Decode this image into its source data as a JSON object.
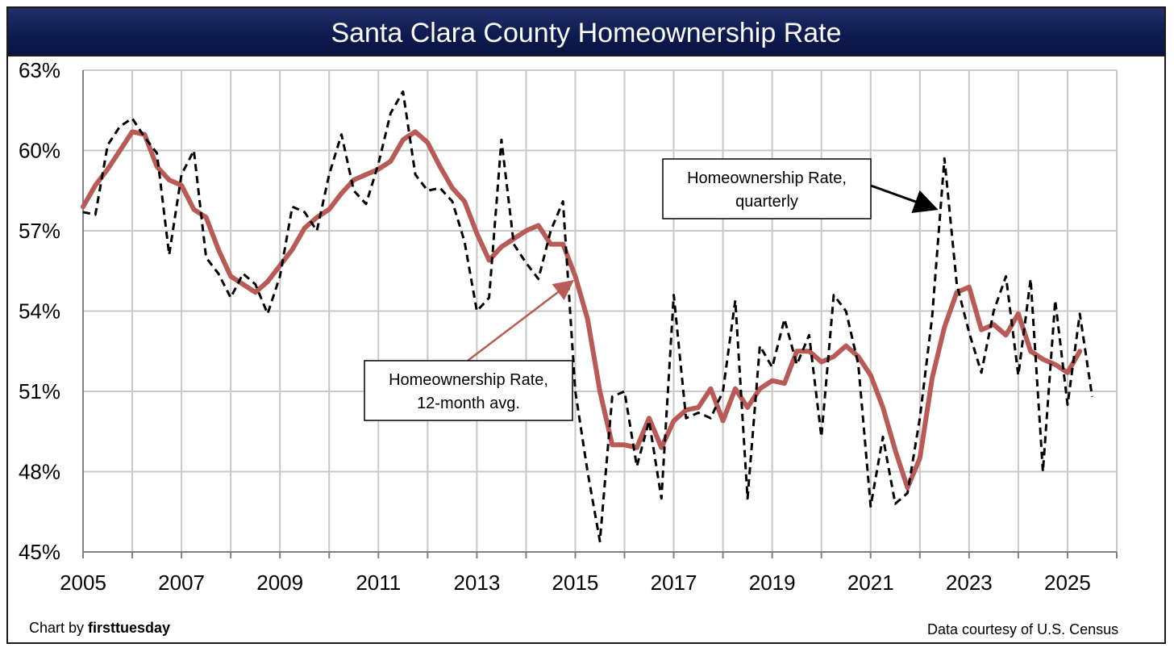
{
  "header": {
    "title": "Santa Clara County Homeownership Rate"
  },
  "credits": {
    "left_prefix": "Chart by ",
    "left_brand": "firsttuesday",
    "right": "Data courtesy of U.S. Census"
  },
  "colors": {
    "title_bg": "#0d1a4e",
    "quarterly": "#000000",
    "avg": "#b85a55",
    "grid": "#c8c8c8"
  },
  "chart_data": {
    "type": "line",
    "title": "Santa Clara County Homeownership Rate",
    "xlabel": "",
    "ylabel": "",
    "xlim": [
      2005,
      2026
    ],
    "ylim": [
      45,
      63
    ],
    "y_ticks": [
      45,
      48,
      51,
      54,
      57,
      60,
      63
    ],
    "y_tick_labels": [
      "45%",
      "48%",
      "51%",
      "54%",
      "57%",
      "60%",
      "63%"
    ],
    "x_ticks": [
      2005,
      2007,
      2009,
      2011,
      2013,
      2015,
      2017,
      2019,
      2021,
      2023,
      2025
    ],
    "x_tick_labels": [
      "2005",
      "2007",
      "2009",
      "2011",
      "2013",
      "2015",
      "2017",
      "2019",
      "2021",
      "2023",
      "2025"
    ],
    "grid": true,
    "series": [
      {
        "name": "Homeownership Rate, quarterly",
        "style": "dashed",
        "x": [
          2005.0,
          2005.25,
          2005.5,
          2005.75,
          2006.0,
          2006.25,
          2006.5,
          2006.75,
          2007.0,
          2007.25,
          2007.5,
          2007.75,
          2008.0,
          2008.25,
          2008.5,
          2008.75,
          2009.0,
          2009.25,
          2009.5,
          2009.75,
          2010.0,
          2010.25,
          2010.5,
          2010.75,
          2011.0,
          2011.25,
          2011.5,
          2011.75,
          2012.0,
          2012.25,
          2012.5,
          2012.75,
          2013.0,
          2013.25,
          2013.5,
          2013.75,
          2014.0,
          2014.25,
          2014.5,
          2014.75,
          2015.0,
          2015.25,
          2015.5,
          2015.75,
          2016.0,
          2016.25,
          2016.5,
          2016.75,
          2017.0,
          2017.25,
          2017.5,
          2017.75,
          2018.0,
          2018.25,
          2018.5,
          2018.75,
          2019.0,
          2019.25,
          2019.5,
          2019.75,
          2020.0,
          2020.25,
          2020.5,
          2020.75,
          2021.0,
          2021.25,
          2021.5,
          2021.75,
          2022.0,
          2022.25,
          2022.5,
          2022.75,
          2023.0,
          2023.25,
          2023.5,
          2023.75,
          2024.0,
          2024.25,
          2024.5,
          2024.75,
          2025.0,
          2025.25,
          2025.5
        ],
        "values": [
          57.7,
          57.6,
          60.2,
          60.9,
          61.2,
          60.5,
          59.9,
          56.1,
          59.1,
          60.0,
          56.0,
          55.4,
          54.5,
          55.4,
          55.0,
          53.9,
          55.3,
          57.9,
          57.7,
          57.0,
          59.1,
          60.6,
          58.5,
          58.0,
          59.5,
          61.4,
          62.2,
          59.1,
          58.5,
          58.6,
          58.1,
          56.6,
          54.0,
          54.5,
          60.4,
          56.5,
          55.8,
          55.2,
          57.0,
          58.1,
          51.0,
          48.0,
          45.4,
          50.8,
          51.0,
          48.2,
          49.9,
          47.0,
          54.6,
          50.0,
          50.2,
          50.0,
          51.0,
          54.4,
          47.0,
          52.7,
          51.9,
          53.7,
          52.0,
          53.1,
          49.3,
          54.6,
          54.0,
          52.0,
          46.7,
          49.3,
          46.8,
          47.2,
          50.0,
          53.8,
          59.7,
          55.0,
          53.2,
          51.7,
          54.0,
          55.3,
          51.6,
          55.2,
          48.0,
          54.4,
          50.5,
          53.9,
          50.8
        ]
      },
      {
        "name": "Homeownership Rate, 12-month avg.",
        "style": "solid",
        "x": [
          2005.0,
          2005.25,
          2005.5,
          2005.75,
          2006.0,
          2006.25,
          2006.5,
          2006.75,
          2007.0,
          2007.25,
          2007.5,
          2007.75,
          2008.0,
          2008.25,
          2008.5,
          2008.75,
          2009.0,
          2009.25,
          2009.5,
          2009.75,
          2010.0,
          2010.25,
          2010.5,
          2010.75,
          2011.0,
          2011.25,
          2011.5,
          2011.75,
          2012.0,
          2012.25,
          2012.5,
          2012.75,
          2013.0,
          2013.25,
          2013.5,
          2013.75,
          2014.0,
          2014.25,
          2014.5,
          2014.75,
          2015.0,
          2015.25,
          2015.5,
          2015.75,
          2016.0,
          2016.25,
          2016.5,
          2016.75,
          2017.0,
          2017.25,
          2017.5,
          2017.75,
          2018.0,
          2018.25,
          2018.5,
          2018.75,
          2019.0,
          2019.25,
          2019.5,
          2019.75,
          2020.0,
          2020.25,
          2020.5,
          2020.75,
          2021.0,
          2021.25,
          2021.5,
          2021.75,
          2022.0,
          2022.25,
          2022.5,
          2022.75,
          2023.0,
          2023.25,
          2023.5,
          2023.75,
          2024.0,
          2024.25,
          2024.5,
          2024.75,
          2025.0,
          2025.25
        ],
        "values": [
          57.9,
          58.7,
          59.3,
          60.0,
          60.7,
          60.6,
          59.4,
          58.9,
          58.7,
          57.8,
          57.5,
          56.3,
          55.3,
          55.0,
          54.7,
          55.1,
          55.7,
          56.3,
          57.1,
          57.5,
          57.8,
          58.4,
          58.9,
          59.1,
          59.3,
          59.6,
          60.4,
          60.7,
          60.3,
          59.4,
          58.6,
          58.1,
          56.9,
          55.9,
          56.4,
          56.7,
          57.0,
          57.2,
          56.5,
          56.5,
          55.3,
          53.7,
          51.0,
          49.0,
          49.0,
          48.9,
          50.0,
          48.9,
          49.9,
          50.3,
          50.4,
          51.1,
          49.9,
          51.1,
          50.4,
          51.1,
          51.4,
          51.3,
          52.5,
          52.5,
          52.1,
          52.3,
          52.7,
          52.3,
          51.6,
          50.4,
          48.8,
          47.4,
          48.5,
          51.5,
          53.4,
          54.7,
          54.9,
          53.3,
          53.5,
          53.1,
          53.9,
          52.5,
          52.2,
          52.0,
          51.7,
          52.5
        ]
      }
    ],
    "annotations": [
      {
        "target": "quarterly",
        "lines": [
          "Homeownership Rate,",
          "quarterly"
        ]
      },
      {
        "target": "avg",
        "lines": [
          "Homeownership Rate,",
          "12-month avg."
        ]
      }
    ]
  }
}
